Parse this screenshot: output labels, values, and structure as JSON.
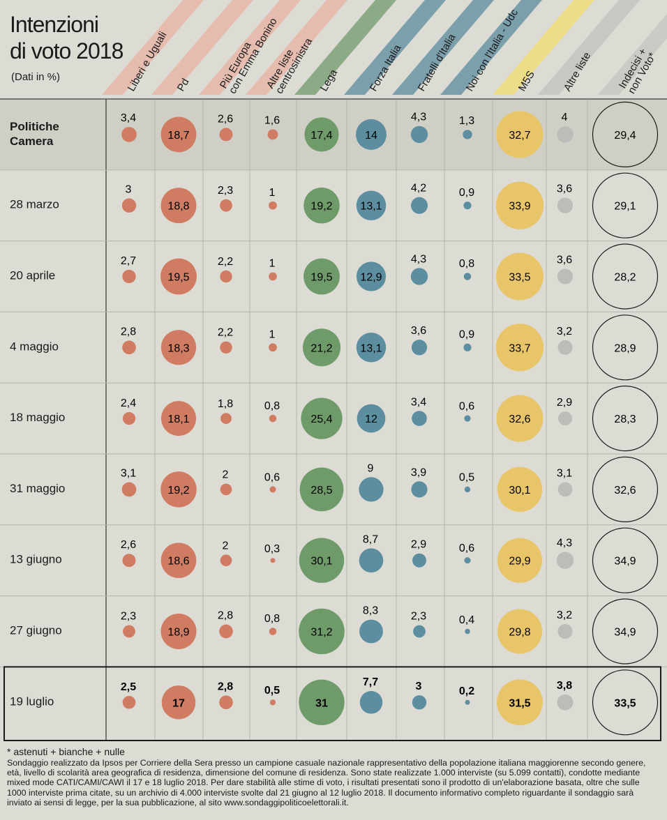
{
  "title_line1": "Intenzioni",
  "title_line2": "di voto 2018",
  "subtitle": "(Dati in %)",
  "footnote": "* astenuti + bianche + nulle",
  "note": "Sondaggio realizzato da Ipsos per Corriere della Sera presso un campione casuale nazionale rappresentativo della popolazione italiana maggiorenne secondo genere, età, livello di scolarità area geografica di residenza, dimensione del comune di residenza. Sono state realizzate 1.000 interviste (su 5.099 contatti), condotte mediante mixed mode CATI/CAMI/CAWI il 17 e 18 luglio 2018. Per dare stabilità alle stime di voto, i risultati presentati sono il prodotto di un'elaborazione basata, oltre che sulle 1000 interviste prima citate, su un archivio di 4.000 interviste svolte dal 21 giugno al 12 luglio 2018. Il documento informativo completo riguardante il sondaggio sarà inviato ai sensi di legge, per la sua pubblicazione, al sito www.sondaggipoliticoelettorali.it.",
  "colors": {
    "centrosinistra": "#cf7c62",
    "lega": "#6f9a6a",
    "fi": "#5c8ea0",
    "m5s": "#e9c56a",
    "altre": "#bcbcb8",
    "background": "#dcdbd4",
    "highlight_row": "#cfcfc6"
  },
  "chart_data": {
    "type": "bubble-table",
    "columns": [
      {
        "key": "leu",
        "label": [
          "Liberi e Uguali"
        ],
        "group": "centrosinistra"
      },
      {
        "key": "pd",
        "label": [
          "Pd"
        ],
        "group": "centrosinistra"
      },
      {
        "key": "piu",
        "label": [
          "Più Europa",
          "con Emma Bonino"
        ],
        "group": "centrosinistra"
      },
      {
        "key": "altrecs",
        "label": [
          "Altre liste",
          "centrosinistra"
        ],
        "group": "centrosinistra"
      },
      {
        "key": "lega",
        "label": [
          "Lega"
        ],
        "group": "lega"
      },
      {
        "key": "fi",
        "label": [
          "Forza Italia"
        ],
        "group": "fi"
      },
      {
        "key": "fdi",
        "label": [
          "Fratelli d'Italia"
        ],
        "group": "fi"
      },
      {
        "key": "nci",
        "label": [
          "Noi con l'Italia - Udc"
        ],
        "group": "fi"
      },
      {
        "key": "m5s",
        "label": [
          "M5S"
        ],
        "group": "m5s"
      },
      {
        "key": "altre",
        "label": [
          "Altre liste"
        ],
        "group": "altre"
      },
      {
        "key": "indecisi",
        "label": [
          "Indecisi +",
          "non Voto*"
        ],
        "group": "indecisi"
      }
    ],
    "rows": [
      {
        "label": [
          "Politiche",
          "Camera"
        ],
        "values": [
          "3,4",
          "18,7",
          "2,6",
          "1,6",
          "17,4",
          "14",
          "4,3",
          "1,3",
          "32,7",
          "4",
          "29,4"
        ]
      },
      {
        "label": [
          "28 marzo"
        ],
        "values": [
          "3",
          "18,8",
          "2,3",
          "1",
          "19,2",
          "13,1",
          "4,2",
          "0,9",
          "33,9",
          "3,6",
          "29,1"
        ]
      },
      {
        "label": [
          "20 aprile"
        ],
        "values": [
          "2,7",
          "19,5",
          "2,2",
          "1",
          "19,5",
          "12,9",
          "4,3",
          "0,8",
          "33,5",
          "3,6",
          "28,2"
        ]
      },
      {
        "label": [
          "4 maggio"
        ],
        "values": [
          "2,8",
          "18,3",
          "2,2",
          "1",
          "21,2",
          "13,1",
          "3,6",
          "0,9",
          "33,7",
          "3,2",
          "28,9"
        ]
      },
      {
        "label": [
          "18 maggio"
        ],
        "values": [
          "2,4",
          "18,1",
          "1,8",
          "0,8",
          "25,4",
          "12",
          "3,4",
          "0,6",
          "32,6",
          "2,9",
          "28,3"
        ]
      },
      {
        "label": [
          "31 maggio"
        ],
        "values": [
          "3,1",
          "19,2",
          "2",
          "0,6",
          "28,5",
          "9",
          "3,9",
          "0,5",
          "30,1",
          "3,1",
          "32,6"
        ]
      },
      {
        "label": [
          "13  giugno"
        ],
        "values": [
          "2,6",
          "18,6",
          "2",
          "0,3",
          "30,1",
          "8,7",
          "2,9",
          "0,6",
          "29,9",
          "4,3",
          "34,9"
        ]
      },
      {
        "label": [
          "27 giugno"
        ],
        "values": [
          "2,3",
          "18,9",
          "2,8",
          "0,8",
          "31,2",
          "8,3",
          "2,3",
          "0,4",
          "29,8",
          "3,2",
          "34,9"
        ]
      },
      {
        "label": [
          "19 luglio"
        ],
        "values": [
          "2,5",
          "17",
          "2,8",
          "0,5",
          "31",
          "7,7",
          "3",
          "0,2",
          "31,5",
          "3,8",
          "33,5"
        ]
      }
    ]
  }
}
